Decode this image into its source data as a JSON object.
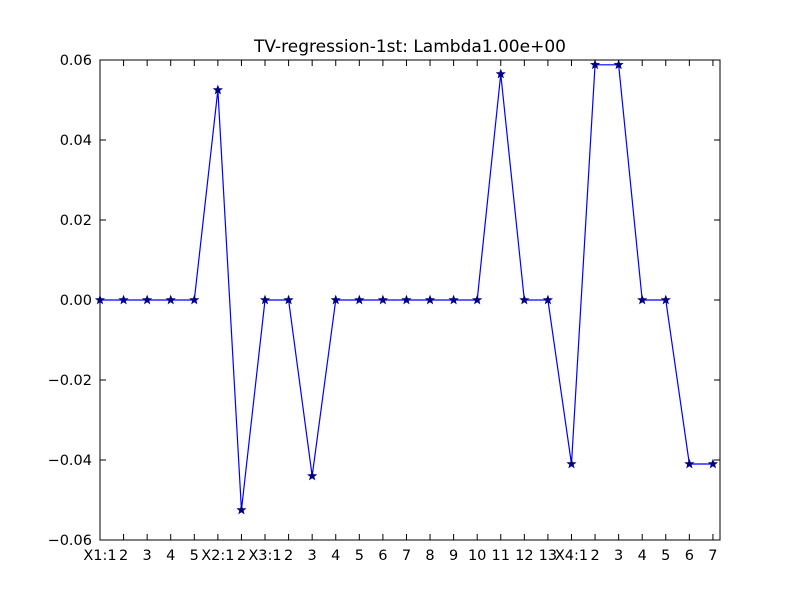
{
  "chart_data": {
    "type": "line",
    "title": "TV-regression-1st: Lambda1.00e+00",
    "xlabel": "",
    "ylabel": "",
    "ylim": [
      -0.06,
      0.06
    ],
    "grid": false,
    "legend": "none",
    "line_color": "#0000ff",
    "marker": "star",
    "marker_color": "#000080",
    "yticks": [
      {
        "value": 0.06,
        "label": "0.06"
      },
      {
        "value": 0.04,
        "label": "0.04"
      },
      {
        "value": 0.02,
        "label": "0.02"
      },
      {
        "value": 0.0,
        "label": "0.00"
      },
      {
        "value": -0.02,
        "label": "−0.02"
      },
      {
        "value": -0.04,
        "label": "−0.04"
      },
      {
        "value": -0.06,
        "label": "−0.06"
      }
    ],
    "xtick_labels": [
      "X1:1",
      "2",
      "3",
      "4",
      "5",
      "X2:1",
      "2",
      "X3:1",
      "2",
      "3",
      "4",
      "5",
      "6",
      "7",
      "8",
      "9",
      "10",
      "11",
      "12",
      "13",
      "X4:1",
      "2",
      "3",
      "4",
      "5",
      "6",
      "7"
    ],
    "values": [
      0,
      0,
      0,
      0,
      0,
      0.0525,
      -0.0525,
      0,
      0,
      -0.044,
      0,
      0,
      0,
      0,
      0,
      0,
      0,
      0.0565,
      0,
      0,
      -0.041,
      0.0588,
      0.0588,
      0,
      0,
      -0.041,
      -0.041
    ]
  }
}
